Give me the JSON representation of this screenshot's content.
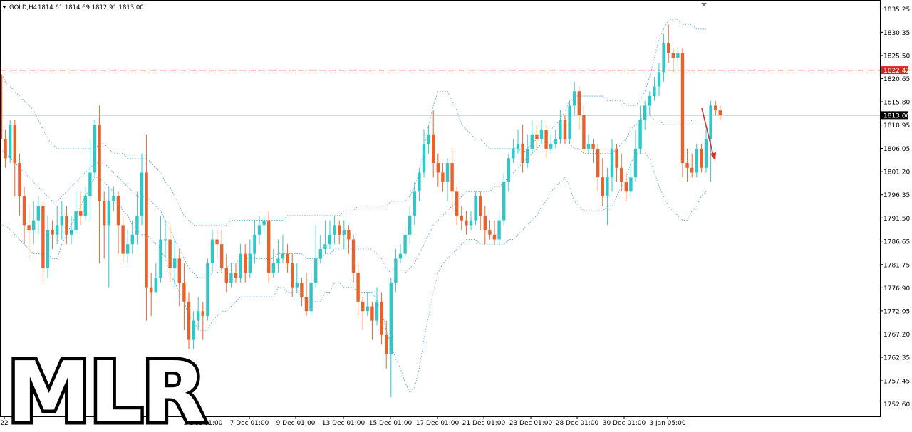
{
  "header": {
    "symbol_timeframe": "GOLD,H4",
    "ohlc": "1814.61 1814.69 1812.91 1813.00"
  },
  "watermark": {
    "text": "MLR"
  },
  "colors": {
    "bull": "#2ec8c8",
    "bear": "#e8622c",
    "band": "#5aa9e6",
    "resistance": "#d9302b",
    "price_line": "#9aa0a6",
    "arrow": "#d9302b",
    "tag_red": "#e0251d",
    "tag_black": "#000000",
    "frame": "#000000"
  },
  "chart_data": {
    "type": "candlestick",
    "ylim": [
      1750.0,
      1837.1
    ],
    "yticks": [
      "1835.25",
      "1830.35",
      "1825.50",
      "1820.65",
      "1815.80",
      "1810.95",
      "1806.05",
      "1801.20",
      "1796.35",
      "1791.50",
      "1786.65",
      "1781.75",
      "1776.90",
      "1772.05",
      "1767.20",
      "1762.35",
      "1757.45",
      "1752.60"
    ],
    "xticks": [
      "22",
      "3 Dec 01:00",
      "7 Dec 01:00",
      "9 Dec 01:00",
      "13 Dec 01:00",
      "15 Dec 01:00",
      "17 Dec 01:00",
      "21 Dec 01:00",
      "23 Dec 01:00",
      "28 Dec 01:00",
      "30 Dec 01:00",
      "3 Jan 05:00"
    ],
    "resistance": {
      "value": 1822.42,
      "label": "1822.42"
    },
    "current_price": {
      "value": 1813.0,
      "label": "1813.00"
    },
    "candles": [
      [
        1821.5,
        1808,
        1823,
        1804
      ],
      [
        1808,
        1804,
        1810,
        1802
      ],
      [
        1804,
        1811,
        1812,
        1803
      ],
      [
        1811,
        1803,
        1812,
        1796
      ],
      [
        1803,
        1796,
        1805,
        1792
      ],
      [
        1796,
        1790,
        1798,
        1786
      ],
      [
        1790,
        1789,
        1794,
        1783
      ],
      [
        1789,
        1791,
        1795,
        1786
      ],
      [
        1791,
        1794,
        1796,
        1788
      ],
      [
        1794,
        1781,
        1795,
        1778
      ],
      [
        1781,
        1789,
        1792,
        1779
      ],
      [
        1789,
        1788,
        1791,
        1785
      ],
      [
        1788,
        1790,
        1794,
        1786
      ],
      [
        1790,
        1792,
        1795,
        1787
      ],
      [
        1792,
        1788,
        1794,
        1786
      ],
      [
        1788,
        1789,
        1792,
        1786
      ],
      [
        1789,
        1793,
        1797,
        1788
      ],
      [
        1793,
        1792,
        1797,
        1790
      ],
      [
        1792,
        1796,
        1798,
        1791
      ],
      [
        1796,
        1801,
        1808,
        1791
      ],
      [
        1801,
        1811,
        1812,
        1800
      ],
      [
        1811,
        1795,
        1815,
        1782
      ],
      [
        1795,
        1790,
        1797,
        1783
      ],
      [
        1790,
        1795,
        1798,
        1777
      ],
      [
        1795,
        1796,
        1798,
        1793
      ],
      [
        1796,
        1790,
        1797,
        1784
      ],
      [
        1790,
        1784,
        1792,
        1782
      ],
      [
        1784,
        1786,
        1789,
        1782
      ],
      [
        1786,
        1788,
        1791,
        1784
      ],
      [
        1788,
        1792,
        1797,
        1786
      ],
      [
        1792,
        1801,
        1805,
        1790
      ],
      [
        1801,
        1777,
        1809,
        1770
      ],
      [
        1777,
        1776,
        1780,
        1771
      ],
      [
        1776,
        1779,
        1782,
        1776
      ],
      [
        1779,
        1787,
        1792,
        1778
      ],
      [
        1787,
        1787,
        1791,
        1783
      ],
      [
        1787,
        1781,
        1790,
        1778
      ],
      [
        1781,
        1783,
        1787,
        1777
      ],
      [
        1783,
        1778,
        1785,
        1773
      ],
      [
        1778,
        1774,
        1782,
        1768
      ],
      [
        1774,
        1766,
        1776,
        1764
      ],
      [
        1766,
        1770,
        1772,
        1764
      ],
      [
        1770,
        1772,
        1775,
        1768
      ],
      [
        1772,
        1771,
        1774,
        1766
      ],
      [
        1771,
        1782,
        1783,
        1770
      ],
      [
        1782,
        1787,
        1789,
        1780
      ],
      [
        1787,
        1786,
        1789,
        1783
      ],
      [
        1786,
        1781,
        1789,
        1780
      ],
      [
        1781,
        1778,
        1784,
        1776
      ],
      [
        1778,
        1780,
        1782,
        1777
      ],
      [
        1780,
        1779,
        1782,
        1778
      ],
      [
        1779,
        1784,
        1786,
        1778
      ],
      [
        1784,
        1780,
        1786,
        1778
      ],
      [
        1780,
        1784,
        1787,
        1779
      ],
      [
        1784,
        1788,
        1791,
        1782
      ],
      [
        1788,
        1790,
        1792,
        1786
      ],
      [
        1790,
        1791,
        1792,
        1788
      ],
      [
        1791,
        1780,
        1793,
        1778
      ],
      [
        1780,
        1782,
        1785,
        1779
      ],
      [
        1782,
        1783,
        1787,
        1780
      ],
      [
        1783,
        1784,
        1788,
        1782
      ],
      [
        1784,
        1782,
        1786,
        1780
      ],
      [
        1782,
        1777,
        1784,
        1775
      ],
      [
        1777,
        1778,
        1782,
        1776
      ],
      [
        1778,
        1775,
        1779,
        1773
      ],
      [
        1775,
        1772,
        1780,
        1771
      ],
      [
        1772,
        1778,
        1780,
        1771
      ],
      [
        1778,
        1783,
        1790,
        1777
      ],
      [
        1783,
        1785,
        1788,
        1782
      ],
      [
        1785,
        1786,
        1791,
        1784
      ],
      [
        1786,
        1788,
        1791,
        1785
      ],
      [
        1788,
        1790,
        1792,
        1786
      ],
      [
        1790,
        1788,
        1791,
        1786
      ],
      [
        1788,
        1789,
        1791,
        1785
      ],
      [
        1789,
        1787,
        1790,
        1784
      ],
      [
        1787,
        1780,
        1788,
        1778
      ],
      [
        1780,
        1774,
        1782,
        1771
      ],
      [
        1774,
        1772,
        1775,
        1768
      ],
      [
        1772,
        1773,
        1776,
        1771
      ],
      [
        1773,
        1770,
        1774,
        1766
      ],
      [
        1770,
        1774,
        1777,
        1769
      ],
      [
        1774,
        1767,
        1776,
        1765
      ],
      [
        1767,
        1763,
        1770,
        1760
      ],
      [
        1763,
        1778,
        1779,
        1754
      ],
      [
        1778,
        1783,
        1785,
        1776
      ],
      [
        1783,
        1784,
        1786,
        1782
      ],
      [
        1784,
        1788,
        1790,
        1783
      ],
      [
        1788,
        1792,
        1794,
        1786
      ],
      [
        1792,
        1797,
        1799,
        1790
      ],
      [
        1797,
        1801,
        1802,
        1795
      ],
      [
        1801,
        1807,
        1810,
        1800
      ],
      [
        1807,
        1809,
        1811,
        1805
      ],
      [
        1809,
        1803,
        1814,
        1800
      ],
      [
        1803,
        1801,
        1805,
        1798
      ],
      [
        1801,
        1799,
        1803,
        1797
      ],
      [
        1799,
        1803,
        1804,
        1795
      ],
      [
        1803,
        1797,
        1806,
        1793
      ],
      [
        1797,
        1792,
        1798,
        1790
      ],
      [
        1792,
        1791,
        1794,
        1789
      ],
      [
        1791,
        1790,
        1793,
        1788
      ],
      [
        1790,
        1791,
        1793,
        1789
      ],
      [
        1791,
        1796,
        1797,
        1790
      ],
      [
        1796,
        1792,
        1797,
        1789
      ],
      [
        1792,
        1789,
        1794,
        1786
      ],
      [
        1789,
        1788,
        1791,
        1787
      ],
      [
        1788,
        1787,
        1791,
        1786
      ],
      [
        1787,
        1791,
        1793,
        1786
      ],
      [
        1791,
        1799,
        1801,
        1790
      ],
      [
        1799,
        1804,
        1805,
        1797
      ],
      [
        1804,
        1806,
        1808,
        1803
      ],
      [
        1806,
        1807,
        1810,
        1805
      ],
      [
        1807,
        1803,
        1811,
        1801
      ],
      [
        1803,
        1806,
        1809,
        1802
      ],
      [
        1806,
        1809,
        1812,
        1805
      ],
      [
        1809,
        1808,
        1811,
        1806
      ],
      [
        1808,
        1810,
        1812,
        1807
      ],
      [
        1810,
        1806,
        1811,
        1804
      ],
      [
        1806,
        1807,
        1809,
        1805
      ],
      [
        1807,
        1808,
        1810,
        1806
      ],
      [
        1808,
        1812,
        1814,
        1807
      ],
      [
        1812,
        1808,
        1813,
        1807
      ],
      [
        1808,
        1815,
        1816,
        1807
      ],
      [
        1815,
        1818,
        1820,
        1813
      ],
      [
        1818,
        1813,
        1819,
        1810
      ],
      [
        1813,
        1806,
        1815,
        1805
      ],
      [
        1806,
        1807,
        1809,
        1805
      ],
      [
        1807,
        1806,
        1808,
        1803
      ],
      [
        1806,
        1800,
        1807,
        1797
      ],
      [
        1800,
        1796,
        1804,
        1794
      ],
      [
        1796,
        1800,
        1802,
        1790
      ],
      [
        1800,
        1806,
        1808,
        1797
      ],
      [
        1806,
        1802,
        1807,
        1799
      ],
      [
        1802,
        1799,
        1805,
        1797
      ],
      [
        1799,
        1797,
        1801,
        1795
      ],
      [
        1797,
        1800,
        1803,
        1796
      ],
      [
        1800,
        1806,
        1810,
        1799
      ],
      [
        1806,
        1812,
        1815,
        1805
      ],
      [
        1812,
        1815,
        1816,
        1810
      ],
      [
        1815,
        1817,
        1818,
        1813
      ],
      [
        1817,
        1819,
        1821,
        1816
      ],
      [
        1819,
        1822,
        1824,
        1817
      ],
      [
        1822,
        1828,
        1830,
        1820
      ],
      [
        1828,
        1826,
        1832,
        1824
      ],
      [
        1826,
        1825,
        1827,
        1822
      ],
      [
        1825,
        1826,
        1827,
        1823
      ],
      [
        1826,
        1803,
        1827,
        1800
      ],
      [
        1803,
        1802,
        1806,
        1799
      ],
      [
        1802,
        1801,
        1805,
        1800
      ],
      [
        1801,
        1806,
        1807,
        1800
      ],
      [
        1806,
        1802,
        1807,
        1801
      ],
      [
        1802,
        1808,
        1810,
        1801
      ],
      [
        1808,
        1815,
        1816,
        1799
      ],
      [
        1815,
        1814,
        1816,
        1813
      ],
      [
        1814,
        1813,
        1815,
        1812
      ]
    ],
    "band_series": [
      {
        "name": "",
        "values": [
          1822,
          1820,
          1819,
          1818,
          1817,
          1816,
          1815,
          1814,
          1812,
          1810,
          1808,
          1807,
          1806,
          1806,
          1806,
          1806,
          1806,
          1806,
          1806,
          1806,
          1806,
          1807,
          1807,
          1806,
          1805,
          1805,
          1805,
          1804,
          1804,
          1804,
          1804,
          1804,
          1803,
          1802,
          1801,
          1799,
          1798,
          1796,
          1794,
          1792,
          1791,
          1790,
          1790,
          1790,
          1790,
          1790,
          1790,
          1790,
          1790,
          1791,
          1791,
          1791,
          1791,
          1791,
          1791,
          1791,
          1791,
          1791,
          1791,
          1791,
          1791,
          1792,
          1792,
          1792,
          1792,
          1792,
          1792,
          1792,
          1792,
          1792,
          1792,
          1792,
          1792,
          1793,
          1793,
          1793,
          1794,
          1794,
          1794,
          1794,
          1794,
          1794,
          1794,
          1795,
          1795,
          1795,
          1795,
          1796,
          1798,
          1801,
          1806,
          1811,
          1815,
          1818,
          1818,
          1818,
          1816,
          1814,
          1811,
          1810,
          1809,
          1808,
          1808,
          1807,
          1806,
          1806,
          1806,
          1806,
          1806,
          1806,
          1806,
          1805,
          1806,
          1807,
          1808,
          1808,
          1809,
          1810,
          1811,
          1812,
          1814,
          1816,
          1817,
          1817,
          1817,
          1817,
          1817,
          1817,
          1817,
          1816,
          1816,
          1816,
          1816,
          1815,
          1815,
          1815,
          1816,
          1818,
          1821,
          1825,
          1829,
          1831,
          1833,
          1833,
          1833,
          1832,
          1832,
          1832,
          1831,
          1831,
          1831
        ]
      },
      {
        "name": "",
        "values": [
          1806,
          1805,
          1804,
          1803,
          1802,
          1801,
          1800,
          1799,
          1798,
          1797,
          1796,
          1795,
          1795,
          1796,
          1797,
          1798,
          1799,
          1800,
          1801,
          1802,
          1803,
          1803,
          1803,
          1802,
          1801,
          1800,
          1799,
          1798,
          1797,
          1796,
          1796,
          1796,
          1795,
          1794,
          1793,
          1791,
          1789,
          1787,
          1785,
          1783,
          1781,
          1780,
          1779,
          1779,
          1779,
          1780,
          1780,
          1781,
          1781,
          1782,
          1782,
          1783,
          1783,
          1783,
          1783,
          1783,
          1783,
          1783,
          1783,
          1784,
          1784,
          1784,
          1784,
          1784,
          1784,
          1783,
          1783,
          1783,
          1783,
          1784,
          1784,
          1785,
          1785,
          1785,
          1785,
          1785,
          1785,
          1785,
          1785,
          1785,
          1784,
          1783,
          1781,
          1780,
          1780,
          1780,
          1780,
          1781,
          1782,
          1784,
          1786,
          1788,
          1790,
          1791,
          1792,
          1793,
          1794,
          1795,
          1796,
          1797,
          1797,
          1797,
          1797,
          1797,
          1797,
          1798,
          1798,
          1799,
          1800,
          1801,
          1802,
          1803,
          1804,
          1805,
          1806,
          1807,
          1807,
          1807,
          1808,
          1808,
          1808,
          1807,
          1806,
          1806,
          1805,
          1805,
          1805,
          1805,
          1805,
          1805,
          1805,
          1806,
          1807,
          1808,
          1810,
          1811,
          1812,
          1813,
          1813,
          1812,
          1812,
          1811,
          1811,
          1811,
          1811,
          1811,
          1811,
          1812,
          1812,
          1812,
          1812
        ]
      },
      {
        "name": "",
        "values": [
          1790,
          1790,
          1789,
          1788,
          1787,
          1786,
          1785,
          1784,
          1784,
          1784,
          1784,
          1783,
          1783,
          1786,
          1788,
          1790,
          1792,
          1794,
          1796,
          1798,
          1800,
          1800,
          1799,
          1798,
          1797,
          1795,
          1793,
          1792,
          1790,
          1789,
          1788,
          1788,
          1787,
          1786,
          1785,
          1783,
          1780,
          1778,
          1776,
          1774,
          1771,
          1770,
          1768,
          1768,
          1768,
          1770,
          1771,
          1772,
          1772,
          1773,
          1774,
          1775,
          1775,
          1775,
          1775,
          1775,
          1775,
          1775,
          1775,
          1777,
          1777,
          1776,
          1776,
          1776,
          1776,
          1774,
          1774,
          1774,
          1774,
          1776,
          1776,
          1778,
          1778,
          1777,
          1777,
          1777,
          1776,
          1776,
          1776,
          1776,
          1774,
          1772,
          1768,
          1765,
          1762,
          1760,
          1757,
          1755,
          1756,
          1760,
          1766,
          1771,
          1776,
          1780,
          1782,
          1783,
          1784,
          1785,
          1786,
          1787,
          1787,
          1787,
          1786,
          1786,
          1786,
          1786,
          1786,
          1786,
          1787,
          1787,
          1788,
          1789,
          1790,
          1791,
          1792,
          1794,
          1795,
          1797,
          1798,
          1799,
          1800,
          1798,
          1795,
          1794,
          1793,
          1793,
          1793,
          1793,
          1793,
          1794,
          1794,
          1796,
          1798,
          1800,
          1803,
          1805,
          1805,
          1805,
          1804,
          1801,
          1798,
          1796,
          1794,
          1793,
          1792,
          1791,
          1791,
          1793,
          1794,
          1796,
          1797
        ]
      }
    ]
  }
}
